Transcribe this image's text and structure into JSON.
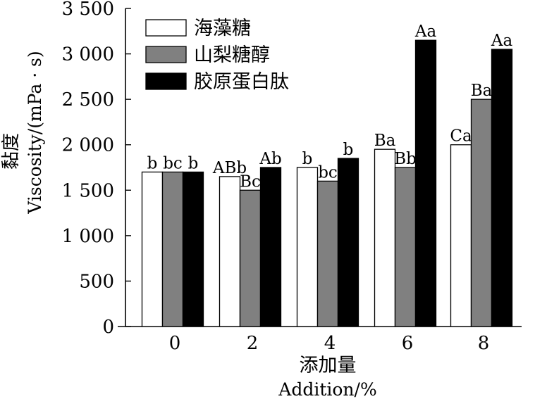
{
  "chart_data": {
    "type": "bar",
    "categories": [
      "0",
      "2",
      "4",
      "6",
      "8"
    ],
    "series": [
      {
        "name": "海藻糖",
        "color": "#ffffff",
        "values": [
          1700,
          1650,
          1750,
          1950,
          2000
        ],
        "labels": [
          "b",
          "ABb",
          "b",
          "Ba",
          "Ca"
        ]
      },
      {
        "name": "山梨糖醇",
        "color": "#808080",
        "values": [
          1700,
          1500,
          1600,
          1750,
          2500
        ],
        "labels": [
          "bc",
          "Bc",
          "bc",
          "Bb",
          "Ba"
        ]
      },
      {
        "name": "胶原蛋白肽",
        "color": "#000000",
        "values": [
          1700,
          1750,
          1850,
          3150,
          3050
        ],
        "labels": [
          "b",
          "Ab",
          "b",
          "Aa",
          "Aa"
        ]
      }
    ],
    "yticks": [
      0,
      500,
      1000,
      1500,
      2000,
      2500,
      3000,
      3500
    ],
    "ytick_labels": [
      "0",
      "500",
      "1 000",
      "1 500",
      "2 000",
      "2 500",
      "3 000",
      "3 500"
    ],
    "ylim": [
      0,
      3500
    ],
    "ylabel_cn": "黏度",
    "ylabel_en": "Viscosity/(mPa · s)",
    "xlabel_cn": "添加量",
    "xlabel_en": "Addition/%",
    "legend_position": "top-left",
    "grid": false
  }
}
